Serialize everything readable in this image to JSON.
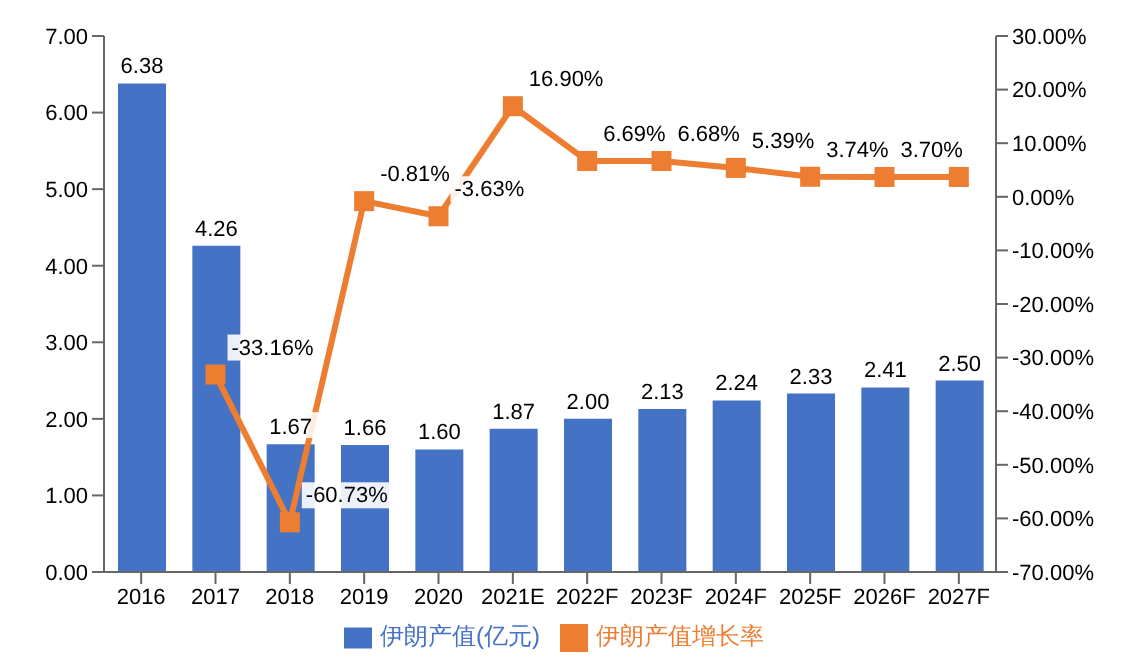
{
  "chart_data": {
    "type": "bar",
    "categories": [
      "2016",
      "2017",
      "2018",
      "2019",
      "2020",
      "2021E",
      "2022F",
      "2023F",
      "2024F",
      "2025F",
      "2026F",
      "2027F"
    ],
    "series": [
      {
        "name": "伊朗产值(亿元)",
        "color": "#4472c4",
        "values": [
          6.38,
          4.26,
          1.67,
          1.66,
          1.6,
          1.87,
          2.0,
          2.13,
          2.24,
          2.33,
          2.41,
          2.5
        ],
        "value_labels": [
          "6.38",
          "4.26",
          "1.67",
          "1.66",
          "1.60",
          "1.87",
          "2.00",
          "2.13",
          "2.24",
          "2.33",
          "2.41",
          "2.50"
        ]
      },
      {
        "name": "伊朗产值增长率",
        "type": "line",
        "axis": "y2",
        "color": "#ed7d31",
        "marker": "square",
        "values": [
          null,
          -33.16,
          -60.73,
          -0.81,
          -3.63,
          16.9,
          6.69,
          6.68,
          5.39,
          3.74,
          3.7,
          3.7
        ],
        "value_labels": [
          null,
          "-33.16%",
          "-60.73%",
          "-0.81%",
          "-3.63%",
          "16.90%",
          "6.69%",
          "6.68%",
          "5.39%",
          "3.74%",
          "3.70%",
          null
        ]
      }
    ],
    "ylim": [
      0,
      7
    ],
    "yticks": [
      {
        "value": 0,
        "label": "0.00"
      },
      {
        "value": 1,
        "label": "1.00"
      },
      {
        "value": 2,
        "label": "2.00"
      },
      {
        "value": 3,
        "label": "3.00"
      },
      {
        "value": 4,
        "label": "4.00"
      },
      {
        "value": 5,
        "label": "5.00"
      },
      {
        "value": 6,
        "label": "6.00"
      },
      {
        "value": 7,
        "label": "7.00"
      }
    ],
    "y2lim": [
      -70,
      30
    ],
    "y2ticks": [
      {
        "value": -70,
        "label": "-70.00%"
      },
      {
        "value": -60,
        "label": "-60.00%"
      },
      {
        "value": -50,
        "label": "-50.00%"
      },
      {
        "value": -40,
        "label": "-40.00%"
      },
      {
        "value": -30,
        "label": "-30.00%"
      },
      {
        "value": -20,
        "label": "-20.00%"
      },
      {
        "value": -10,
        "label": "-10.00%"
      },
      {
        "value": 0,
        "label": "0.00%"
      },
      {
        "value": 10,
        "label": "10.00%"
      },
      {
        "value": 20,
        "label": "20.00%"
      },
      {
        "value": 30,
        "label": "30.00%"
      }
    ],
    "grid": false,
    "legend": "bottom"
  }
}
